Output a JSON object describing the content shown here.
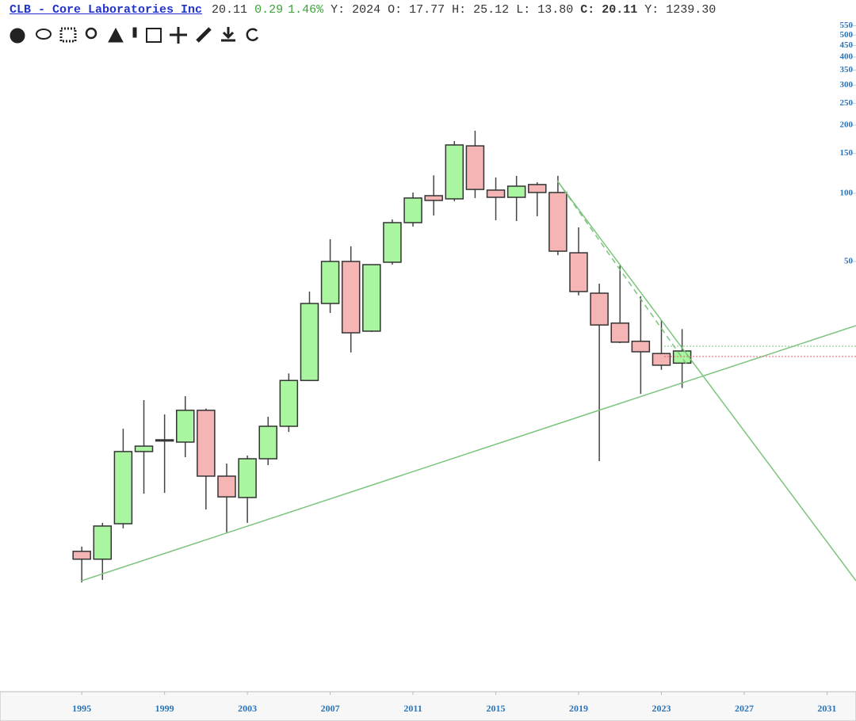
{
  "header": {
    "symbol": "CLB - Core Laboratories Inc",
    "last": "20.11",
    "change": "0.29",
    "change_pct": "1.46%",
    "fields": [
      {
        "label": "Y:",
        "value": "2024"
      },
      {
        "label": "O:",
        "value": "17.77"
      },
      {
        "label": "H:",
        "value": "25.12"
      },
      {
        "label": "L:",
        "value": "13.80"
      },
      {
        "label": "C:",
        "value": "20.11"
      },
      {
        "label": "Y:",
        "value": "1239.30"
      }
    ]
  },
  "chart_data": {
    "type": "candlestick",
    "log_scale": true,
    "up_color": "#aaf5a0",
    "down_color": "#f5b5b5",
    "x": [
      1995,
      1996,
      1997,
      1998,
      1999,
      2000,
      2001,
      2002,
      2003,
      2004,
      2005,
      2006,
      2007,
      2008,
      2009,
      2010,
      2011,
      2012,
      2013,
      2014,
      2015,
      2016,
      2017,
      2018,
      2019,
      2020,
      2021,
      2022,
      2023,
      2024
    ],
    "open": [
      2.62,
      2.42,
      3.47,
      7.23,
      8.05,
      7.96,
      11.0,
      5.63,
      4.53,
      6.72,
      9.35,
      14.9,
      32.6,
      50.0,
      24.6,
      49.6,
      74.2,
      97.6,
      94.5,
      162,
      103.3,
      96.0,
      109.3,
      100.8,
      54.6,
      36.2,
      26.7,
      22.2,
      19.6,
      17.77
    ],
    "high": [
      2.75,
      3.5,
      9.12,
      12.2,
      10.55,
      12.7,
      11.2,
      6.4,
      6.94,
      10.3,
      16.0,
      36.8,
      62.7,
      58.3,
      48.6,
      76.6,
      100.8,
      120,
      170,
      189,
      117.5,
      119.4,
      111.9,
      119.4,
      70.7,
      39.9,
      48.0,
      35.1,
      27.5,
      25.12
    ],
    "low": [
      1.91,
      1.96,
      3.31,
      4.71,
      4.75,
      6.83,
      4.01,
      3.18,
      3.5,
      6.3,
      8.83,
      14.8,
      29.6,
      19.8,
      24.4,
      48.4,
      71.3,
      79.8,
      92.3,
      95.3,
      76.0,
      75.4,
      79.2,
      53.3,
      35.4,
      6.56,
      21.8,
      13.0,
      16.6,
      13.8
    ],
    "close": [
      2.42,
      3.39,
      7.23,
      7.64,
      8.15,
      11.0,
      5.63,
      4.56,
      6.72,
      9.35,
      14.9,
      32.6,
      50.0,
      24.2,
      48.4,
      74.2,
      95.3,
      93.0,
      163.5,
      104,
      96.0,
      107.5,
      100.8,
      55.5,
      36.8,
      26.2,
      22.0,
      19.95,
      17.4,
      20.11
    ],
    "xlim": [
      1991.05,
      2032.4
    ],
    "xticks": [
      1995,
      1999,
      2003,
      2007,
      2011,
      2015,
      2019,
      2023,
      2027,
      2031
    ],
    "ylim": [
      0.644,
      570
    ],
    "yticks": [
      550,
      500,
      450,
      400,
      350,
      300,
      250,
      200,
      150,
      100,
      50
    ]
  }
}
